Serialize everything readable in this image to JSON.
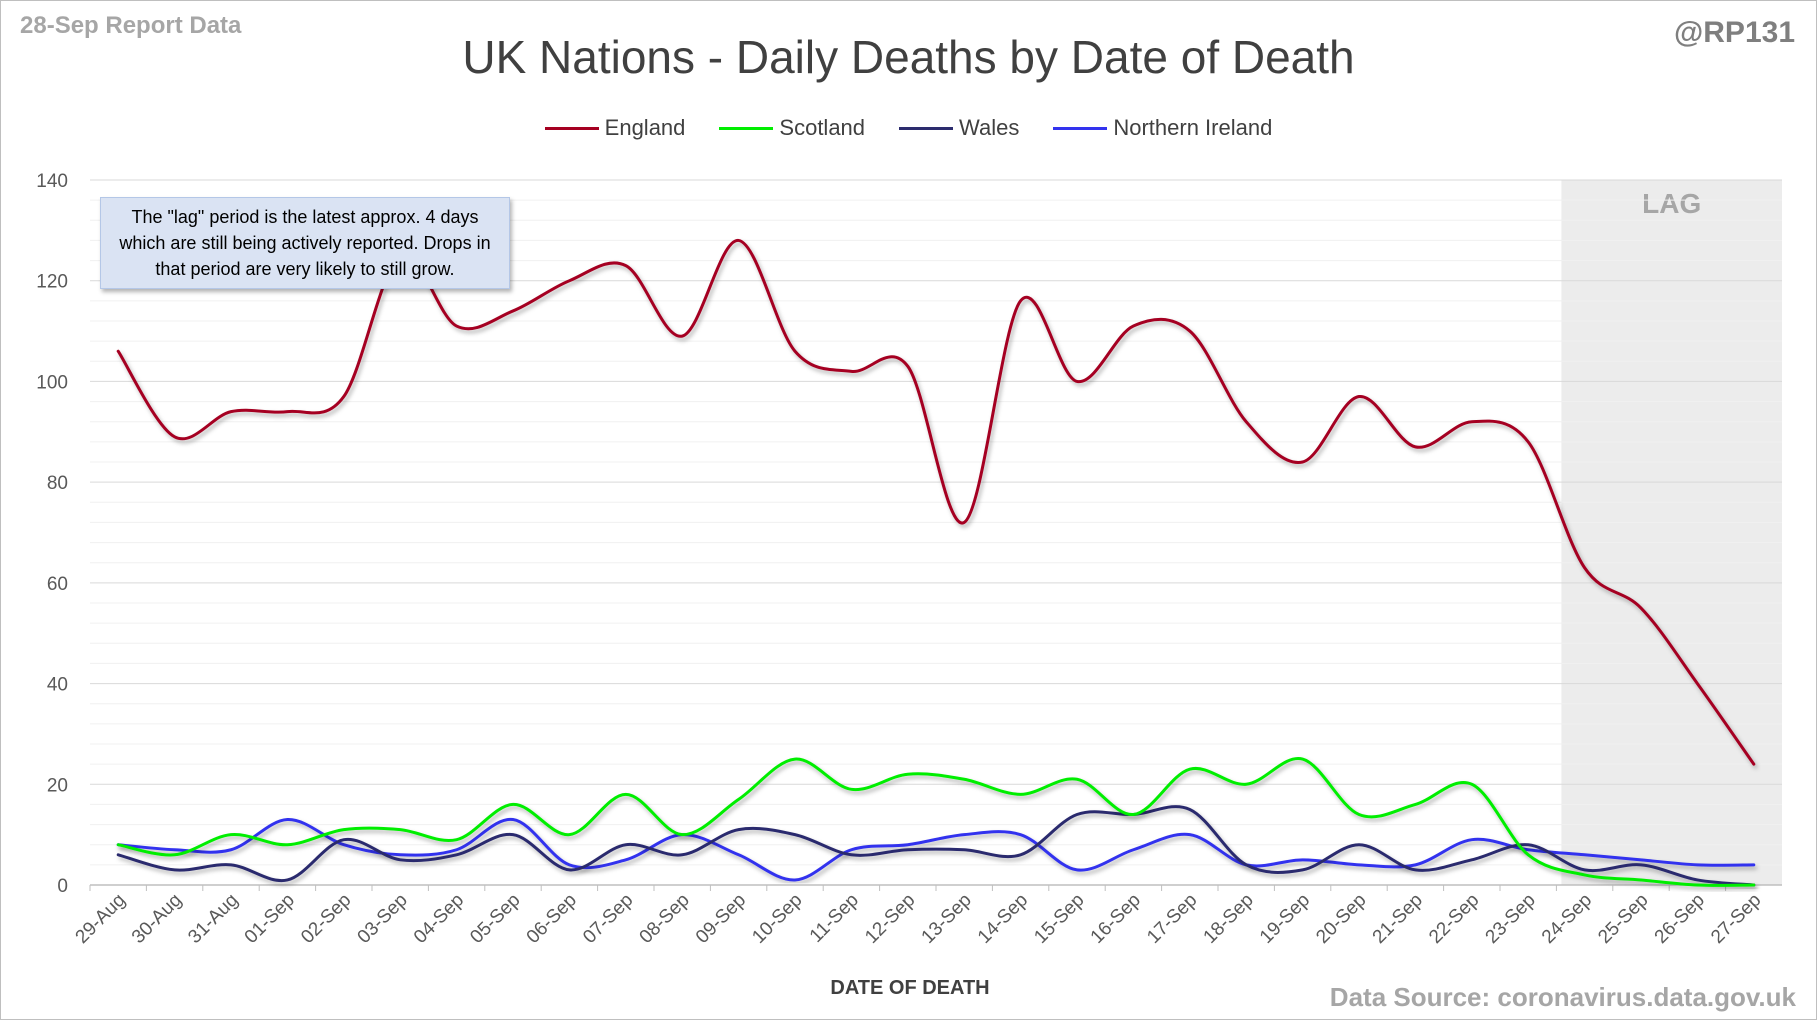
{
  "header": {
    "report_date": "28-Sep Report Data",
    "handle": "@RP131",
    "source": "Data Source: coronavirus.data.gov.uk"
  },
  "annotation": {
    "text": "The \"lag\" period is the latest approx. 4 days which are still being actively reported.  Drops in that period are very likely to still grow."
  },
  "lag": {
    "label": "LAG",
    "start_category": "24-Sep",
    "end_category": "27-Sep",
    "color": "#ececec"
  },
  "chart_data": {
    "type": "line",
    "title": "UK Nations - Daily Deaths by Date of Death",
    "xlabel": "DATE OF DEATH",
    "ylabel": "",
    "ylim": [
      0,
      140
    ],
    "yticks": [
      0,
      20,
      40,
      60,
      80,
      100,
      120,
      140
    ],
    "grid": true,
    "legend_position": "top",
    "smooth": true,
    "categories": [
      "29-Aug",
      "30-Aug",
      "31-Aug",
      "01-Sep",
      "02-Sep",
      "03-Sep",
      "04-Sep",
      "05-Sep",
      "06-Sep",
      "07-Sep",
      "08-Sep",
      "09-Sep",
      "10-Sep",
      "11-Sep",
      "12-Sep",
      "13-Sep",
      "14-Sep",
      "15-Sep",
      "16-Sep",
      "17-Sep",
      "18-Sep",
      "19-Sep",
      "20-Sep",
      "21-Sep",
      "22-Sep",
      "23-Sep",
      "24-Sep",
      "25-Sep",
      "26-Sep",
      "27-Sep"
    ],
    "series": [
      {
        "name": "England",
        "color": "#a50021",
        "values": [
          106,
          89,
          94,
          94,
          97,
          125,
          111,
          114,
          120,
          123,
          109,
          128,
          106,
          102,
          103,
          72,
          116,
          100,
          111,
          110,
          92,
          84,
          97,
          87,
          92,
          88,
          63,
          55,
          40,
          24
        ]
      },
      {
        "name": "Scotland",
        "color": "#00ee00",
        "values": [
          8,
          6,
          10,
          8,
          11,
          11,
          9,
          16,
          10,
          18,
          10,
          17,
          25,
          19,
          22,
          21,
          18,
          21,
          14,
          23,
          20,
          25,
          14,
          16,
          20,
          6,
          2,
          1,
          0,
          0
        ]
      },
      {
        "name": "Wales",
        "color": "#2c2c6e",
        "values": [
          6,
          3,
          4,
          1,
          9,
          5,
          6,
          10,
          3,
          8,
          6,
          11,
          10,
          6,
          7,
          7,
          6,
          14,
          14,
          15,
          4,
          3,
          8,
          3,
          5,
          8,
          3,
          4,
          1,
          0
        ]
      },
      {
        "name": "Northern Ireland",
        "color": "#3333ee",
        "values": [
          8,
          7,
          7,
          13,
          8,
          6,
          7,
          13,
          4,
          5,
          10,
          6,
          1,
          7,
          8,
          10,
          10,
          3,
          7,
          10,
          4,
          5,
          4,
          4,
          9,
          7,
          6,
          5,
          4,
          4
        ]
      }
    ]
  }
}
